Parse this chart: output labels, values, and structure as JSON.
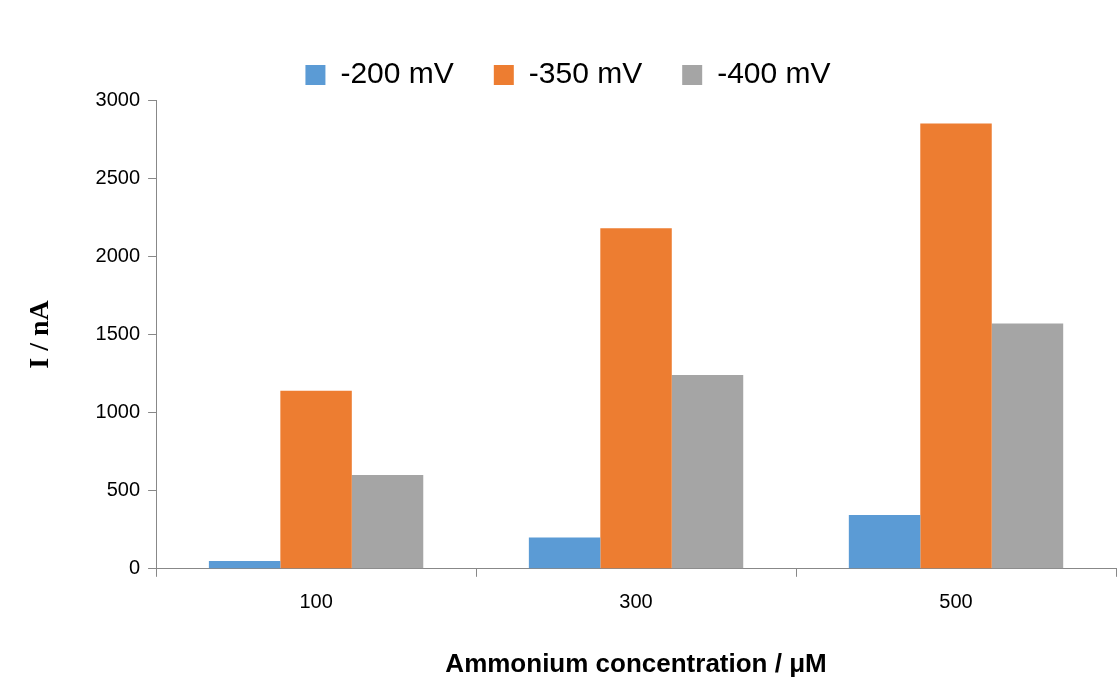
{
  "chart_data": {
    "type": "bar",
    "xlabel": "Ammonium concentration / μM",
    "ylabel": "I / nA",
    "categories": [
      "100",
      "300",
      "500"
    ],
    "series": [
      {
        "name": "-200 mV",
        "color": "#5b9bd5",
        "values": [
          50,
          200,
          345
        ]
      },
      {
        "name": "-350 mV",
        "color": "#ed7d31",
        "values": [
          1140,
          2180,
          2850
        ]
      },
      {
        "name": "-400 mV",
        "color": "#a5a5a5",
        "values": [
          600,
          1240,
          1570
        ]
      }
    ],
    "ylim": [
      0,
      3000
    ],
    "yticks": [
      0,
      500,
      1000,
      1500,
      2000,
      2500,
      3000
    ],
    "grid": false,
    "legend": "top"
  }
}
